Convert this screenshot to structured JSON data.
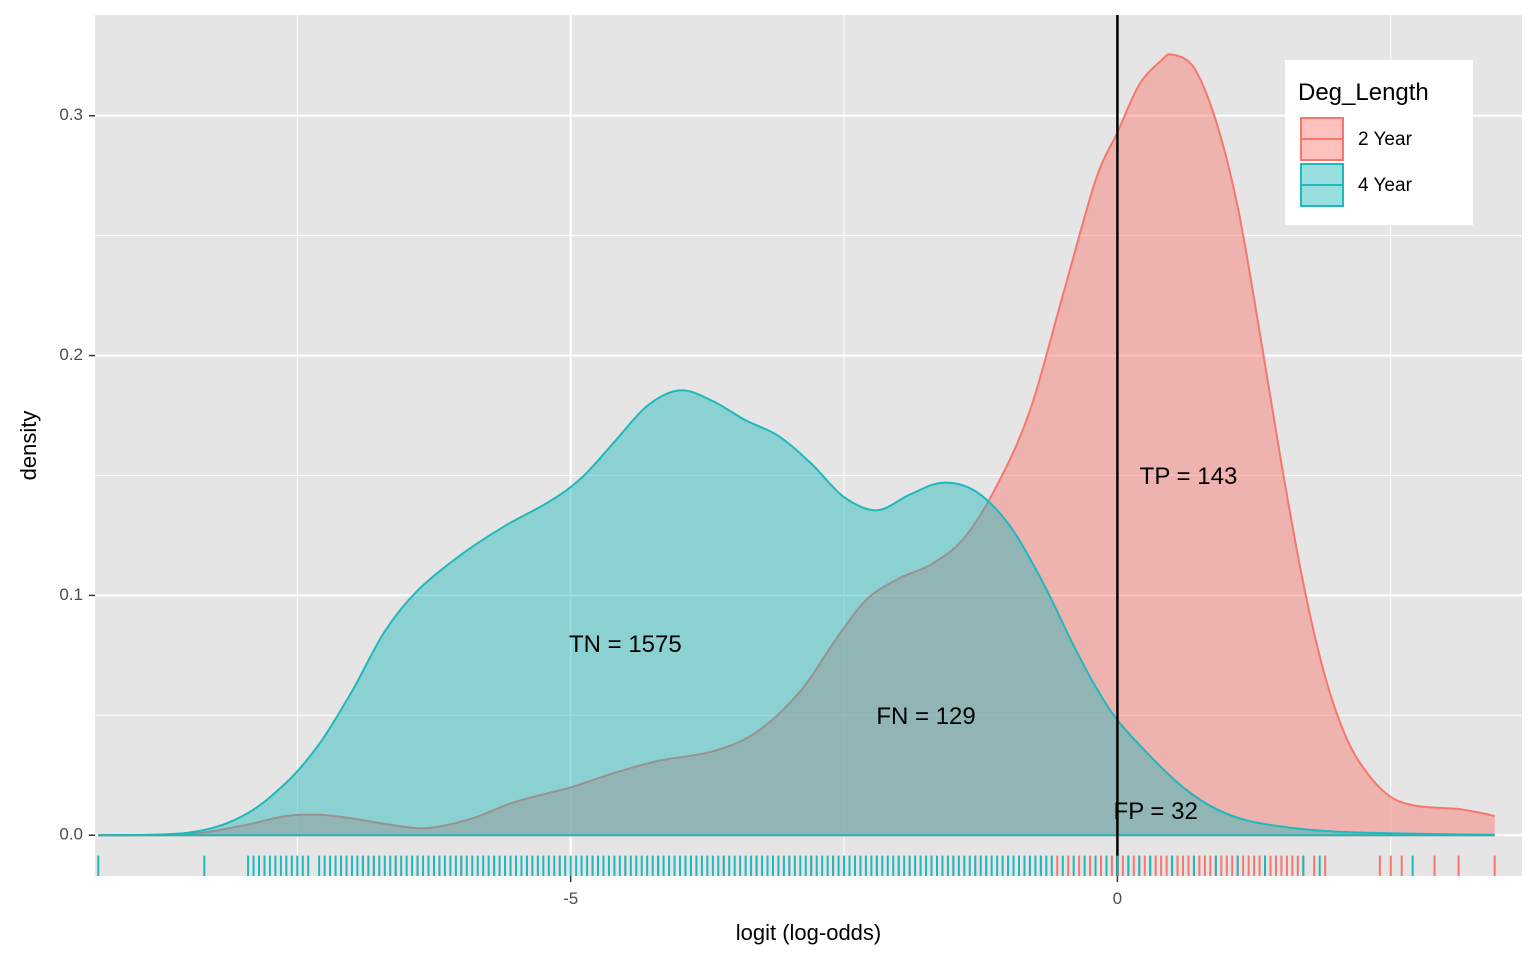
{
  "chart_data": {
    "type": "area",
    "xlabel": "logit (log-odds)",
    "ylabel": "density",
    "xlim": [
      -9.35,
      3.7
    ],
    "ylim": [
      -0.017,
      0.342
    ],
    "x_ticks": [
      {
        "value": -5,
        "label": "-5"
      },
      {
        "value": 0,
        "label": "0"
      }
    ],
    "y_ticks": [
      {
        "value": 0.0,
        "label": "0.0"
      },
      {
        "value": 0.1,
        "label": "0.1"
      },
      {
        "value": 0.2,
        "label": "0.2"
      },
      {
        "value": 0.3,
        "label": "0.3"
      }
    ],
    "grid": true,
    "background": "#e5e5e5",
    "threshold": 0,
    "legend": {
      "title": "Deg_Length",
      "position": "right-inside-top",
      "entries": [
        {
          "label": "2 Year",
          "color": "#f8766d"
        },
        {
          "label": "4 Year",
          "color": "#1fb8bb"
        }
      ]
    },
    "series": [
      {
        "name": "2 Year",
        "color": "#f8766d",
        "points": [
          [
            -9.32,
            0.0
          ],
          [
            -8.5,
            0.0005
          ],
          [
            -8.0,
            0.004
          ],
          [
            -7.6,
            0.008
          ],
          [
            -7.3,
            0.0085
          ],
          [
            -7.0,
            0.007
          ],
          [
            -6.6,
            0.004
          ],
          [
            -6.3,
            0.003
          ],
          [
            -5.9,
            0.007
          ],
          [
            -5.5,
            0.014
          ],
          [
            -5.0,
            0.02
          ],
          [
            -4.6,
            0.026
          ],
          [
            -4.2,
            0.031
          ],
          [
            -3.7,
            0.035
          ],
          [
            -3.3,
            0.043
          ],
          [
            -2.9,
            0.06
          ],
          [
            -2.6,
            0.08
          ],
          [
            -2.3,
            0.098
          ],
          [
            -2.0,
            0.107
          ],
          [
            -1.7,
            0.113
          ],
          [
            -1.4,
            0.124
          ],
          [
            -1.1,
            0.146
          ],
          [
            -0.8,
            0.177
          ],
          [
            -0.5,
            0.225
          ],
          [
            -0.2,
            0.273
          ],
          [
            0.0,
            0.293
          ],
          [
            0.2,
            0.313
          ],
          [
            0.4,
            0.323
          ],
          [
            0.5,
            0.3255
          ],
          [
            0.7,
            0.32
          ],
          [
            0.9,
            0.298
          ],
          [
            1.1,
            0.262
          ],
          [
            1.3,
            0.21
          ],
          [
            1.5,
            0.155
          ],
          [
            1.7,
            0.105
          ],
          [
            1.9,
            0.066
          ],
          [
            2.1,
            0.04
          ],
          [
            2.3,
            0.025
          ],
          [
            2.5,
            0.016
          ],
          [
            2.7,
            0.0125
          ],
          [
            2.9,
            0.0115
          ],
          [
            3.1,
            0.011
          ],
          [
            3.3,
            0.0095
          ],
          [
            3.45,
            0.008
          ]
        ]
      },
      {
        "name": "4 Year",
        "color": "#1fb8bb",
        "points": [
          [
            -9.32,
            0.0
          ],
          [
            -8.5,
            0.001
          ],
          [
            -8.0,
            0.008
          ],
          [
            -7.6,
            0.022
          ],
          [
            -7.3,
            0.038
          ],
          [
            -7.0,
            0.06
          ],
          [
            -6.7,
            0.085
          ],
          [
            -6.4,
            0.102
          ],
          [
            -6.0,
            0.117
          ],
          [
            -5.6,
            0.129
          ],
          [
            -5.2,
            0.139
          ],
          [
            -4.9,
            0.149
          ],
          [
            -4.6,
            0.164
          ],
          [
            -4.3,
            0.179
          ],
          [
            -4.0,
            0.1855
          ],
          [
            -3.7,
            0.181
          ],
          [
            -3.4,
            0.173
          ],
          [
            -3.1,
            0.1665
          ],
          [
            -2.8,
            0.155
          ],
          [
            -2.5,
            0.141
          ],
          [
            -2.2,
            0.1355
          ],
          [
            -1.9,
            0.142
          ],
          [
            -1.6,
            0.147
          ],
          [
            -1.3,
            0.1435
          ],
          [
            -1.0,
            0.13
          ],
          [
            -0.7,
            0.107
          ],
          [
            -0.4,
            0.079
          ],
          [
            -0.2,
            0.062
          ],
          [
            0.0,
            0.048
          ],
          [
            0.3,
            0.033
          ],
          [
            0.6,
            0.02
          ],
          [
            0.9,
            0.011
          ],
          [
            1.2,
            0.006
          ],
          [
            1.6,
            0.003
          ],
          [
            2.0,
            0.0015
          ],
          [
            2.5,
            0.0008
          ],
          [
            3.0,
            0.0004
          ],
          [
            3.45,
            0.0002
          ]
        ]
      }
    ],
    "annotations": [
      {
        "text": "TN = 1575",
        "x": -4.5,
        "y": 0.079
      },
      {
        "text": "FN = 129",
        "x": -1.75,
        "y": 0.049
      },
      {
        "text": "TP = 143",
        "x": 0.65,
        "y": 0.149
      },
      {
        "text": "FP = 32",
        "x": 0.35,
        "y": 0.0095
      }
    ],
    "rug_2year": [
      -7.1,
      -6.9,
      -6.8,
      -6.6,
      -6.4,
      -6.2,
      -6.0,
      -5.7,
      -5.4,
      -5.1,
      -4.8,
      -4.5,
      -4.2,
      -3.9,
      -3.6,
      -3.3,
      -3.0,
      -2.8,
      -2.6,
      -2.4,
      -2.2,
      -2.0,
      -1.9,
      -1.7,
      -1.5,
      -1.3,
      -1.2,
      -1.0,
      -0.9,
      -0.8,
      -0.7,
      -0.55,
      -0.45,
      -0.35,
      -0.25,
      -0.15,
      -0.05,
      0.05,
      0.1,
      0.15,
      0.2,
      0.25,
      0.3,
      0.35,
      0.4,
      0.45,
      0.5,
      0.55,
      0.6,
      0.65,
      0.7,
      0.75,
      0.8,
      0.85,
      0.9,
      0.95,
      1.0,
      1.05,
      1.1,
      1.15,
      1.2,
      1.25,
      1.3,
      1.35,
      1.4,
      1.45,
      1.5,
      1.55,
      1.6,
      1.65,
      1.7,
      1.8,
      1.9,
      2.4,
      2.5,
      2.6,
      2.9,
      3.12,
      3.45
    ],
    "rug_4year": [
      -9.32,
      -8.35,
      -7.95,
      -7.9,
      -7.85,
      -7.8,
      -7.75,
      -7.7,
      -7.65,
      -7.6,
      -7.55,
      -7.5,
      -7.45,
      -7.4,
      -7.3,
      -7.25,
      -7.2,
      -7.15,
      -7.1,
      -7.05,
      -7.0,
      -6.95,
      -6.9,
      -6.85,
      -6.8,
      -6.75,
      -6.7,
      -6.65,
      -6.6,
      -6.55,
      -6.5,
      -6.45,
      -6.4,
      -6.35,
      -6.3,
      -6.25,
      -6.2,
      -6.15,
      -6.1,
      -6.05,
      -6.0,
      -5.95,
      -5.9,
      -5.85,
      -5.8,
      -5.75,
      -5.7,
      -5.65,
      -5.6,
      -5.55,
      -5.5,
      -5.45,
      -5.4,
      -5.35,
      -5.3,
      -5.25,
      -5.2,
      -5.15,
      -5.1,
      -5.05,
      -5.0,
      -4.95,
      -4.9,
      -4.85,
      -4.8,
      -4.75,
      -4.7,
      -4.65,
      -4.6,
      -4.55,
      -4.5,
      -4.45,
      -4.4,
      -4.35,
      -4.3,
      -4.25,
      -4.2,
      -4.15,
      -4.1,
      -4.05,
      -4.0,
      -3.95,
      -3.9,
      -3.85,
      -3.8,
      -3.75,
      -3.7,
      -3.65,
      -3.6,
      -3.55,
      -3.5,
      -3.45,
      -3.4,
      -3.35,
      -3.3,
      -3.25,
      -3.2,
      -3.15,
      -3.1,
      -3.05,
      -3.0,
      -2.95,
      -2.9,
      -2.85,
      -2.8,
      -2.75,
      -2.7,
      -2.65,
      -2.6,
      -2.55,
      -2.5,
      -2.45,
      -2.4,
      -2.35,
      -2.3,
      -2.25,
      -2.2,
      -2.15,
      -2.1,
      -2.05,
      -2.0,
      -1.95,
      -1.9,
      -1.85,
      -1.8,
      -1.75,
      -1.7,
      -1.65,
      -1.6,
      -1.55,
      -1.5,
      -1.45,
      -1.4,
      -1.35,
      -1.3,
      -1.25,
      -1.2,
      -1.15,
      -1.1,
      -1.05,
      -1.0,
      -0.95,
      -0.9,
      -0.85,
      -0.8,
      -0.75,
      -0.7,
      -0.65,
      -0.6,
      -0.5,
      -0.4,
      -0.3,
      -0.2,
      -0.1,
      0.0,
      0.1,
      0.2,
      0.3,
      0.5,
      0.7,
      0.9,
      1.1,
      1.35,
      1.7,
      1.85,
      2.7
    ]
  }
}
